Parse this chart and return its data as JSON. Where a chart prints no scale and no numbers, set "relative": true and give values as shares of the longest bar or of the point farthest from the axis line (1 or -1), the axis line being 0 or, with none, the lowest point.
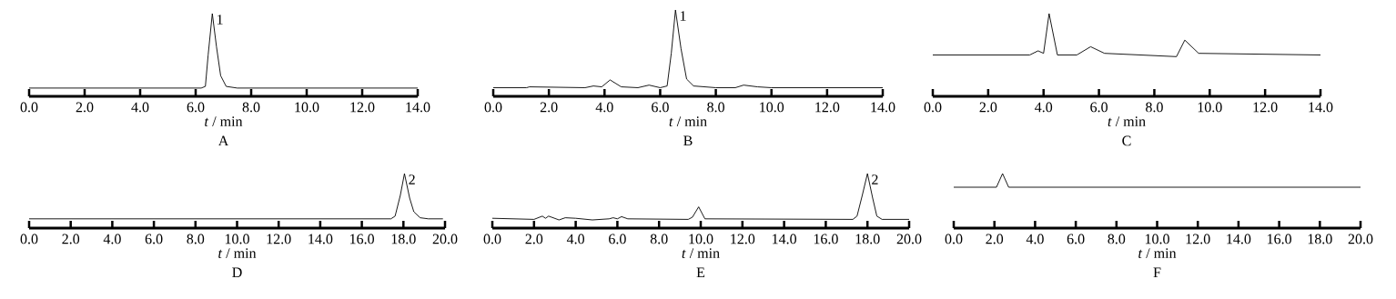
{
  "chart_data": [
    {
      "type": "line",
      "title": "A",
      "xlabel": "*t* / min",
      "relative": true,
      "xlim": [
        0,
        14
      ],
      "xticks": [
        {
          "value": 0,
          "label": "0.0"
        },
        {
          "value": 2,
          "label": "2.0"
        },
        {
          "value": 4,
          "label": "4.0"
        },
        {
          "value": 6,
          "label": "6.0"
        },
        {
          "value": 8,
          "label": "8.0"
        },
        {
          "value": 10,
          "label": "10.0"
        },
        {
          "value": 12,
          "label": "12.0"
        },
        {
          "value": 14,
          "label": "14.0"
        }
      ],
      "x": [
        0,
        6.2,
        6.35,
        6.45,
        6.6,
        6.75,
        6.9,
        7.1,
        7.5,
        14
      ],
      "series": [
        {
          "color": "#000000",
          "values": [
            0.1,
            0.1,
            0.12,
            0.5,
            1,
            0.6,
            0.25,
            0.12,
            0.1,
            0.1
          ]
        }
      ],
      "annotations": [
        {
          "text": "1",
          "x": 6.6,
          "y": 1
        }
      ]
    },
    {
      "type": "line",
      "title": "B",
      "xlabel": "*t* / min",
      "relative": true,
      "xlim": [
        0,
        14
      ],
      "xticks": [
        {
          "value": 0,
          "label": "0.0"
        },
        {
          "value": 2,
          "label": "2.0"
        },
        {
          "value": 4,
          "label": "4.0"
        },
        {
          "value": 6,
          "label": "6.0"
        },
        {
          "value": 8,
          "label": "8.0"
        },
        {
          "value": 10,
          "label": "10.0"
        },
        {
          "value": 12,
          "label": "12.0"
        },
        {
          "value": 14,
          "label": "14.0"
        }
      ],
      "x": [
        0,
        1.2,
        1.3,
        3.3,
        3.6,
        3.9,
        4.2,
        4.6,
        5.2,
        5.6,
        6.0,
        6.25,
        6.4,
        6.55,
        6.75,
        6.95,
        7.2,
        8,
        8.7,
        9.0,
        9.5,
        10,
        14
      ],
      "series": [
        {
          "color": "#000000",
          "values": [
            0.1,
            0.1,
            0.11,
            0.1,
            0.12,
            0.11,
            0.19,
            0.11,
            0.1,
            0.13,
            0.1,
            0.12,
            0.5,
            1,
            0.55,
            0.2,
            0.12,
            0.1,
            0.1,
            0.13,
            0.11,
            0.1,
            0.1
          ]
        }
      ],
      "annotations": [
        {
          "text": "1",
          "x": 6.55,
          "y": 1
        }
      ]
    },
    {
      "type": "line",
      "title": "C",
      "xlabel": "*t* / min",
      "relative": true,
      "xlim": [
        0,
        14
      ],
      "xticks": [
        {
          "value": 0,
          "label": "0.0"
        },
        {
          "value": 2,
          "label": "2.0"
        },
        {
          "value": 4,
          "label": "4.0"
        },
        {
          "value": 6,
          "label": "6.0"
        },
        {
          "value": 8,
          "label": "8.0"
        },
        {
          "value": 10,
          "label": "10.0"
        },
        {
          "value": 12,
          "label": "12.0"
        },
        {
          "value": 14,
          "label": "14.0"
        }
      ],
      "x": [
        0,
        3.5,
        3.8,
        4.0,
        4.2,
        4.5,
        5.2,
        5.7,
        6.2,
        8.8,
        9.1,
        9.6,
        14
      ],
      "series": [
        {
          "color": "#000000",
          "values": [
            0.5,
            0.5,
            0.55,
            0.52,
            1,
            0.5,
            0.5,
            0.6,
            0.52,
            0.48,
            0.68,
            0.52,
            0.5
          ]
        }
      ]
    },
    {
      "type": "line",
      "title": "D",
      "xlabel": "*t* / min",
      "relative": true,
      "xlim": [
        0,
        20
      ],
      "xticks": [
        {
          "value": 0,
          "label": "0.0"
        },
        {
          "value": 2,
          "label": "2.0"
        },
        {
          "value": 4,
          "label": "4.0"
        },
        {
          "value": 6,
          "label": "6.0"
        },
        {
          "value": 8,
          "label": "8.0"
        },
        {
          "value": 10,
          "label": "10.0"
        },
        {
          "value": 12,
          "label": "12.0"
        },
        {
          "value": 14,
          "label": "14.0"
        },
        {
          "value": 16,
          "label": "16.0"
        },
        {
          "value": 18,
          "label": "18.0"
        },
        {
          "value": 20,
          "label": "20.0"
        }
      ],
      "x": [
        0,
        17.4,
        17.6,
        17.85,
        18.05,
        18.3,
        18.5,
        18.8,
        19.2,
        19.9
      ],
      "series": [
        {
          "color": "#000000",
          "values": [
            0.17,
            0.17,
            0.22,
            0.6,
            1,
            0.55,
            0.3,
            0.19,
            0.17,
            0.17
          ]
        }
      ],
      "annotations": [
        {
          "text": "2",
          "x": 18.05,
          "y": 1
        }
      ]
    },
    {
      "type": "line",
      "title": "E",
      "xlabel": "*t* / min",
      "relative": true,
      "xlim": [
        0,
        20
      ],
      "xticks": [
        {
          "value": 0,
          "label": "0.0"
        },
        {
          "value": 2,
          "label": "2.0"
        },
        {
          "value": 4,
          "label": "4.0"
        },
        {
          "value": 6,
          "label": "6.0"
        },
        {
          "value": 8,
          "label": "8.0"
        },
        {
          "value": 10,
          "label": "10.0"
        },
        {
          "value": 12,
          "label": "12.0"
        },
        {
          "value": 14,
          "label": "14.0"
        },
        {
          "value": 16,
          "label": "16.0"
        },
        {
          "value": 18,
          "label": "18.0"
        },
        {
          "value": 20,
          "label": "20.0"
        }
      ],
      "x": [
        0,
        2.0,
        2.4,
        2.55,
        2.7,
        3.2,
        3.5,
        4.0,
        4.8,
        5.6,
        5.8,
        6.0,
        6.2,
        6.5,
        9.4,
        9.6,
        9.9,
        10.2,
        17.3,
        17.5,
        17.75,
        18.0,
        18.25,
        18.45,
        18.7,
        20
      ],
      "series": [
        {
          "color": "#000000",
          "values": [
            0.18,
            0.16,
            0.22,
            0.18,
            0.22,
            0.15,
            0.19,
            0.18,
            0.15,
            0.17,
            0.19,
            0.17,
            0.21,
            0.17,
            0.16,
            0.2,
            0.39,
            0.17,
            0.16,
            0.22,
            0.6,
            1,
            0.55,
            0.22,
            0.16,
            0.16
          ]
        }
      ],
      "annotations": [
        {
          "text": "2",
          "x": 18.0,
          "y": 1
        }
      ]
    },
    {
      "type": "line",
      "title": "F",
      "xlabel": "*t* / min",
      "relative": true,
      "xlim": [
        0,
        20
      ],
      "xticks": [
        {
          "value": 0,
          "label": "0.0"
        },
        {
          "value": 2,
          "label": "2.0"
        },
        {
          "value": 4,
          "label": "4.0"
        },
        {
          "value": 6,
          "label": "6.0"
        },
        {
          "value": 8,
          "label": "8.0"
        },
        {
          "value": 10,
          "label": "10.0"
        },
        {
          "value": 12,
          "label": "12.0"
        },
        {
          "value": 14,
          "label": "14.0"
        },
        {
          "value": 16,
          "label": "16.0"
        },
        {
          "value": 18,
          "label": "18.0"
        },
        {
          "value": 20,
          "label": "20.0"
        }
      ],
      "x": [
        0,
        2.1,
        2.4,
        2.7,
        20
      ],
      "series": [
        {
          "color": "#000000",
          "values": [
            0.75,
            0.75,
            1,
            0.75,
            0.75
          ]
        }
      ]
    }
  ]
}
